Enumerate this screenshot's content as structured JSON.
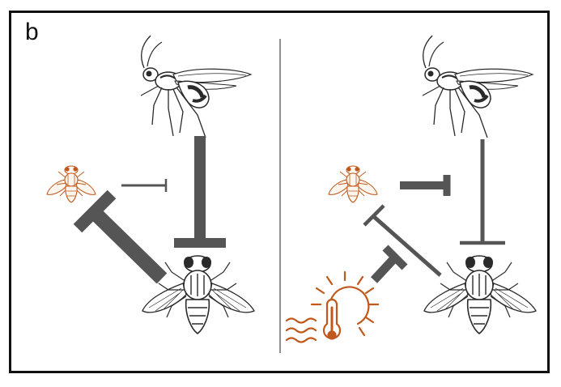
{
  "panel": {
    "label": "b"
  },
  "colors": {
    "frame": "#111111",
    "divider": "#555555",
    "arrow": "#555555",
    "small_fly": "#c0581c",
    "temperature": "#c0581c",
    "ink": "#2a2a2a"
  },
  "icons": {
    "parasitoid": "wasp-icon",
    "host": "fly-icon",
    "competitor": "small-fly-icon",
    "climate": "temperature-icon"
  }
}
